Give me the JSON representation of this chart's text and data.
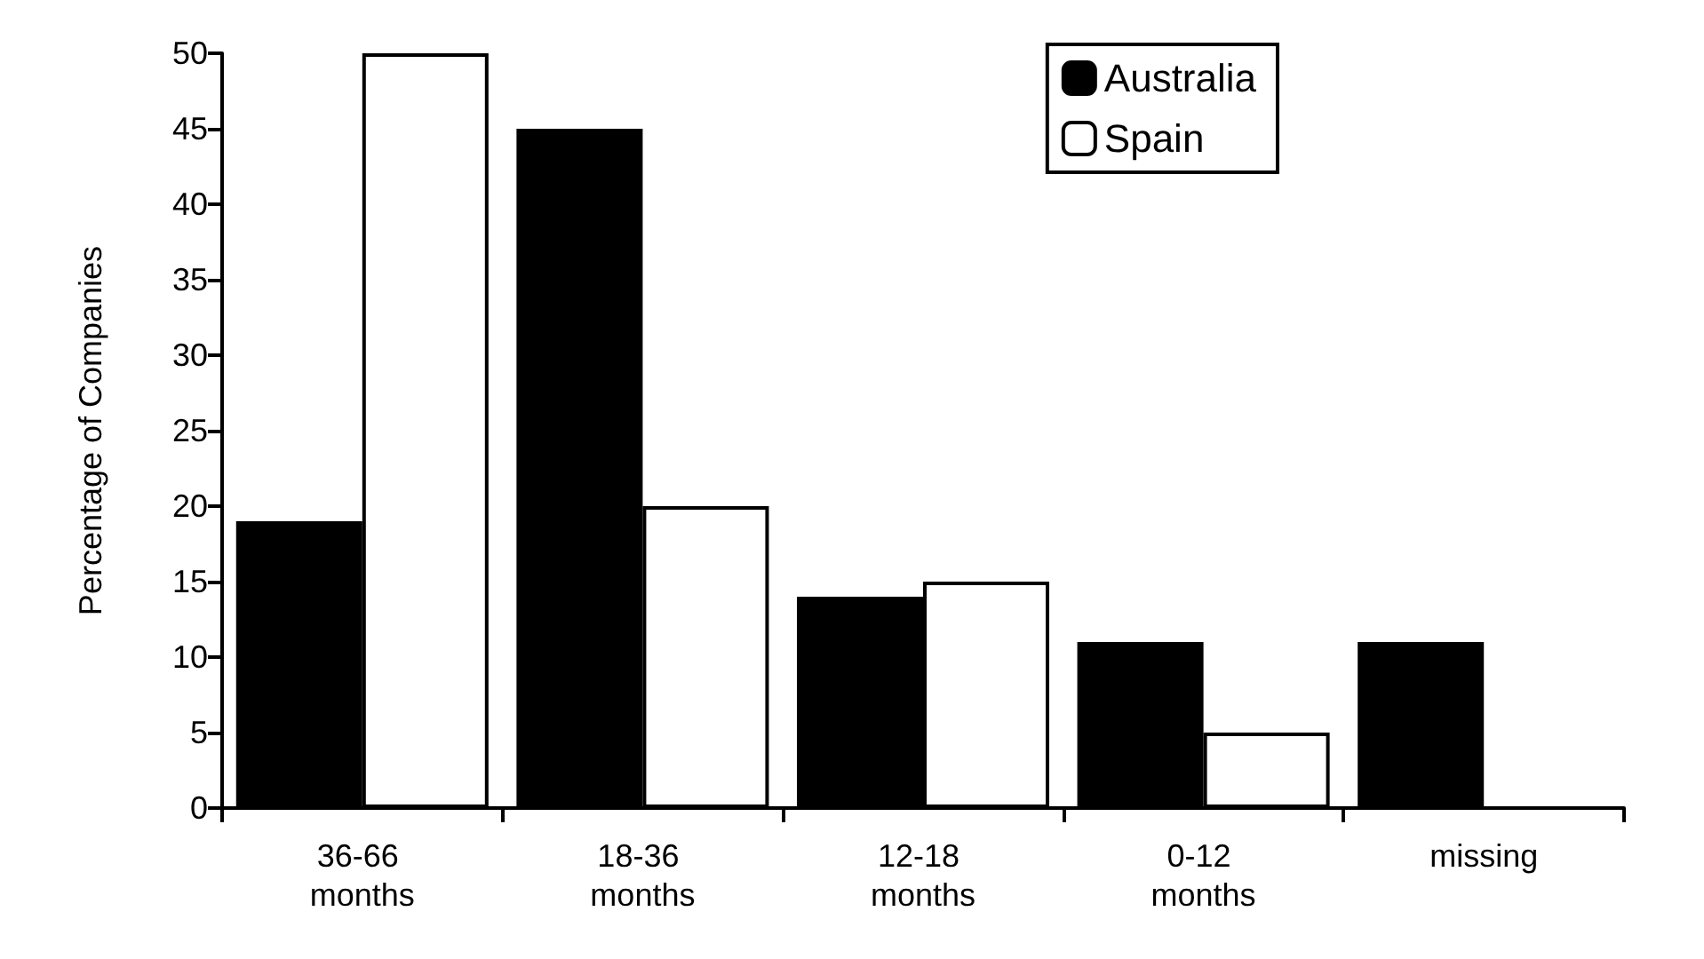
{
  "chart_data": {
    "type": "bar",
    "ylabel": "Percentage of Companies",
    "categories": [
      "36-66 months",
      "18-36 months",
      "12-18 months",
      "0-12 months",
      "missing"
    ],
    "series": [
      {
        "name": "Australia",
        "color": "#000000",
        "values": [
          19,
          45,
          14,
          11,
          11
        ]
      },
      {
        "name": "Spain",
        "color": "#ffffff",
        "values": [
          50,
          20,
          15,
          5,
          null
        ]
      }
    ],
    "ylim": [
      0,
      50
    ],
    "yticks": [
      0,
      5,
      10,
      15,
      20,
      25,
      30,
      35,
      40,
      45,
      50
    ],
    "grid": false,
    "legend": "top right"
  }
}
